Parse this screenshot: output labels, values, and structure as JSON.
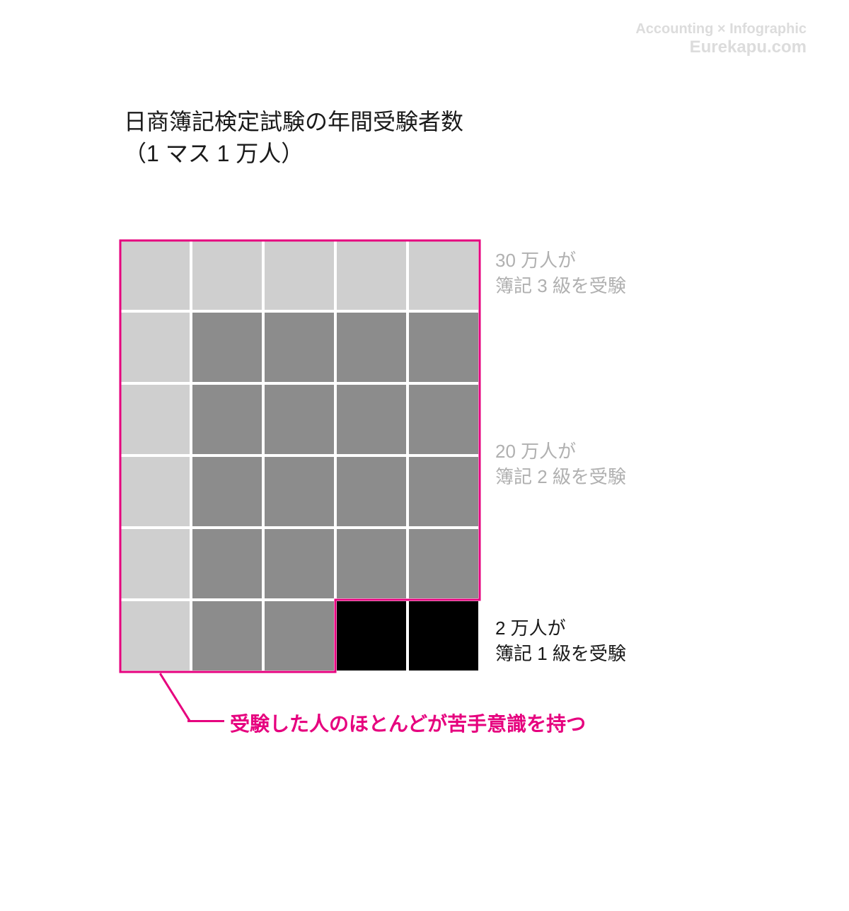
{
  "watermark": {
    "line1": "Accounting × Infographic",
    "line2": "Eurekapu.com",
    "color": "#dcdcdc"
  },
  "title": {
    "line1": "日商簿記検定試験の年間受験者数",
    "line2": "（1 マス 1 万人）",
    "color": "#1a1a1a",
    "fontsize": 32
  },
  "grid": {
    "rows": 6,
    "cols": 5,
    "cell_size": 98,
    "gap": 4,
    "colors": {
      "light": "#cfcfcf",
      "medium": "#8c8c8c",
      "black": "#000000"
    },
    "cells": [
      [
        "light",
        "light",
        "light",
        "light",
        "light"
      ],
      [
        "light",
        "medium",
        "medium",
        "medium",
        "medium"
      ],
      [
        "light",
        "medium",
        "medium",
        "medium",
        "medium"
      ],
      [
        "light",
        "medium",
        "medium",
        "medium",
        "medium"
      ],
      [
        "light",
        "medium",
        "medium",
        "medium",
        "medium"
      ],
      [
        "light",
        "medium",
        "medium",
        "black",
        "black"
      ]
    ],
    "outline": {
      "color": "#e6007e",
      "width": 3,
      "excludes_black_cells": true
    }
  },
  "labels": {
    "level3": {
      "line1": "30 万人が",
      "line2": "簿記 3 級を受験",
      "color": "#b0b0b0"
    },
    "level2": {
      "line1": "20 万人が",
      "line2": "簿記 2 級を受験",
      "color": "#b0b0b0"
    },
    "level1": {
      "line1": "2 万人が",
      "line2": "簿記 1 級を受験",
      "color": "#1a1a1a"
    }
  },
  "callout": {
    "text": "受験した人のほとんどが苦手意識を持つ",
    "color": "#e6007e",
    "fontsize": 28
  },
  "background_color": "#ffffff"
}
